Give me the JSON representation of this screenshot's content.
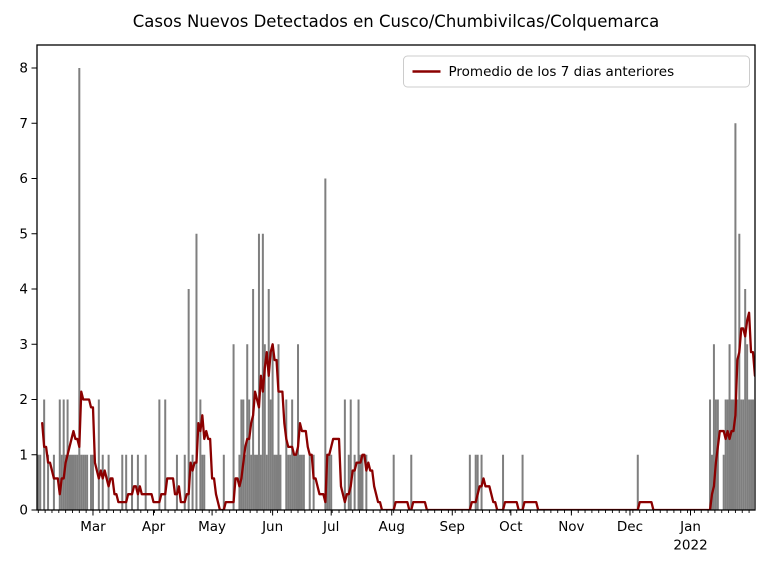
{
  "title": "Casos Nuevos Detectados en Cusco/Chumbivilcas/Colquemarca",
  "legend": {
    "label": "Promedio de los 7 dias anteriores"
  },
  "colors": {
    "bar": "#7f7f7f",
    "line": "#8b0000",
    "frame": "#000000",
    "tick": "#000000",
    "legend_border": "#cccccc",
    "background": "#ffffff"
  },
  "chart_data": {
    "type": "bar",
    "title": "Casos Nuevos Detectados en Cusco/Chumbivilcas/Colquemarca",
    "xlabel": "",
    "ylabel": "",
    "x_unit": "days since 2021-02-01",
    "x_axis": {
      "range_days": [
        -0.7,
        367
      ],
      "month_tick_labels": [
        "Mar",
        "Apr",
        "May",
        "Jun",
        "Jul",
        "Aug",
        "Sep",
        "Oct",
        "Nov",
        "Dec",
        "Jan"
      ],
      "month_tick_day_indices": [
        28,
        59,
        89,
        120,
        150,
        181,
        212,
        242,
        273,
        303,
        334
      ],
      "year_label": "2022",
      "year_label_under_index": 334,
      "minor_tick_interval_days": 3.5
    },
    "y_axis": {
      "ticks": [
        0,
        1,
        2,
        3,
        4,
        5,
        6,
        7,
        8
      ],
      "range": [
        0,
        8.42
      ],
      "grid": false
    },
    "bars": {
      "name": "casos nuevos diarios",
      "points": [
        [
          0,
          1
        ],
        [
          1,
          1
        ],
        [
          3,
          2
        ],
        [
          5,
          1
        ],
        [
          8,
          1
        ],
        [
          11,
          2
        ],
        [
          12,
          1
        ],
        [
          13,
          2
        ],
        [
          14,
          1
        ],
        [
          15,
          2
        ],
        [
          16,
          1
        ],
        [
          17,
          1
        ],
        [
          18,
          1
        ],
        [
          19,
          1
        ],
        [
          20,
          1
        ],
        [
          21,
          8
        ],
        [
          22,
          1
        ],
        [
          23,
          1
        ],
        [
          24,
          1
        ],
        [
          25,
          1
        ],
        [
          27,
          1
        ],
        [
          28,
          1
        ],
        [
          31,
          2
        ],
        [
          33,
          1
        ],
        [
          36,
          1
        ],
        [
          43,
          1
        ],
        [
          45,
          1
        ],
        [
          48,
          1
        ],
        [
          51,
          1
        ],
        [
          55,
          1
        ],
        [
          62,
          2
        ],
        [
          65,
          2
        ],
        [
          71,
          1
        ],
        [
          75,
          1
        ],
        [
          77,
          4
        ],
        [
          79,
          1
        ],
        [
          81,
          5
        ],
        [
          83,
          2
        ],
        [
          84,
          1
        ],
        [
          85,
          1
        ],
        [
          95,
          1
        ],
        [
          100,
          3
        ],
        [
          103,
          1
        ],
        [
          104,
          2
        ],
        [
          105,
          2
        ],
        [
          106,
          1
        ],
        [
          107,
          3
        ],
        [
          108,
          2
        ],
        [
          109,
          1
        ],
        [
          110,
          4
        ],
        [
          111,
          1
        ],
        [
          112,
          1
        ],
        [
          113,
          5
        ],
        [
          114,
          1
        ],
        [
          115,
          5
        ],
        [
          116,
          3
        ],
        [
          117,
          1
        ],
        [
          118,
          4
        ],
        [
          119,
          2
        ],
        [
          120,
          3
        ],
        [
          121,
          1
        ],
        [
          122,
          1
        ],
        [
          123,
          3
        ],
        [
          124,
          1
        ],
        [
          127,
          2
        ],
        [
          128,
          1
        ],
        [
          129,
          1
        ],
        [
          130,
          2
        ],
        [
          131,
          1
        ],
        [
          132,
          1
        ],
        [
          133,
          3
        ],
        [
          134,
          1
        ],
        [
          135,
          1
        ],
        [
          136,
          1
        ],
        [
          139,
          1
        ],
        [
          141,
          1
        ],
        [
          147,
          6
        ],
        [
          148,
          1
        ],
        [
          149,
          1
        ],
        [
          150,
          1
        ],
        [
          157,
          2
        ],
        [
          159,
          1
        ],
        [
          160,
          2
        ],
        [
          162,
          1
        ],
        [
          164,
          2
        ],
        [
          165,
          1
        ],
        [
          166,
          1
        ],
        [
          168,
          1
        ],
        [
          182,
          1
        ],
        [
          191,
          1
        ],
        [
          221,
          1
        ],
        [
          224,
          1
        ],
        [
          225,
          1
        ],
        [
          227,
          1
        ],
        [
          238,
          1
        ],
        [
          248,
          1
        ],
        [
          307,
          1
        ],
        [
          344,
          2
        ],
        [
          345,
          1
        ],
        [
          346,
          3
        ],
        [
          347,
          2
        ],
        [
          348,
          2
        ],
        [
          351,
          1
        ],
        [
          352,
          2
        ],
        [
          353,
          2
        ],
        [
          354,
          3
        ],
        [
          355,
          2
        ],
        [
          356,
          2
        ],
        [
          357,
          7
        ],
        [
          358,
          2
        ],
        [
          359,
          5
        ],
        [
          360,
          2
        ],
        [
          361,
          2
        ],
        [
          362,
          4
        ],
        [
          363,
          3
        ],
        [
          364,
          2
        ],
        [
          365,
          2
        ],
        [
          366,
          2
        ]
      ]
    },
    "line": {
      "name": "Promedio de los 7 dias anteriores",
      "window_days": 7,
      "method": "trailing mean of the previous 7 days of the daily bar values",
      "pre_history_values": [
        0,
        0,
        3,
        2,
        2,
        1,
        1
      ],
      "draw_day_range": [
        2,
        367
      ]
    },
    "legend_position": "upper right"
  }
}
